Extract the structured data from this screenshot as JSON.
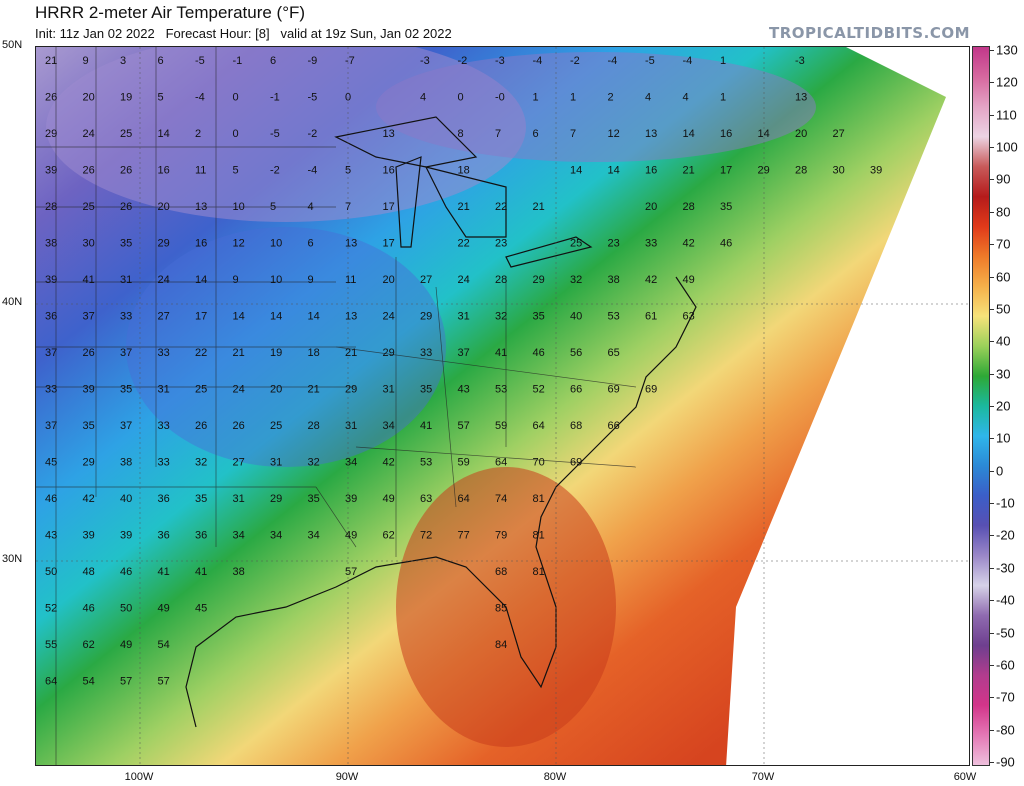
{
  "header": {
    "title": "HRRR 2-meter Air Temperature (°F)",
    "subtitle": "Init: 11z Jan 02 2022   Forecast Hour: [8]   valid at 19z Sun, Jan 02 2022",
    "brand": "TROPICALTIDBITS.COM"
  },
  "axes": {
    "lat_labels": [
      "50N",
      "40N",
      "30N"
    ],
    "lon_labels": [
      "100W",
      "90W",
      "80W",
      "70W",
      "60W"
    ]
  },
  "colorbar": {
    "ticks": [
      "130",
      "120",
      "110",
      "100",
      "90",
      "80",
      "70",
      "60",
      "50",
      "40",
      "30",
      "20",
      "10",
      "0",
      "-10",
      "-20",
      "-30",
      "-40",
      "-50",
      "-60",
      "-70",
      "-80",
      "-90"
    ],
    "stops": [
      "#c2378a",
      "#d6689f",
      "#e3a4c5",
      "#ecd3e3",
      "#c85a5a",
      "#b51b1b",
      "#e03a1a",
      "#ef7a29",
      "#f5b04a",
      "#f6e27a",
      "#9bd05a",
      "#2ea836",
      "#1bb89e",
      "#2fb6ea",
      "#2b89d6",
      "#3b5ec8",
      "#5850b3",
      "#9a87c8",
      "#d6d2e8",
      "#8f6bb0",
      "#6e3f8f",
      "#b13c8e",
      "#d2358a",
      "#e478b5",
      "#eec0dc"
    ]
  },
  "map_values": [
    [
      "21",
      "9",
      "3",
      "6",
      "-5",
      "-1",
      "6",
      "-9",
      "-7",
      "",
      "-3",
      "-2",
      "-3",
      "-4",
      "-2",
      "-4",
      "-5",
      "-4",
      "1",
      "",
      "-3",
      ""
    ],
    [
      "26",
      "20",
      "19",
      "5",
      "-4",
      "0",
      "-1",
      "-5",
      "0",
      "",
      "4",
      "0",
      "-0",
      "1",
      "1",
      "2",
      "4",
      "4",
      "1",
      "",
      "13",
      ""
    ],
    [
      "29",
      "24",
      "25",
      "14",
      "2",
      "0",
      "-5",
      "-2",
      "",
      "13",
      "",
      "8",
      "7",
      "6",
      "7",
      "12",
      "13",
      "14",
      "16",
      "14",
      "20",
      "27"
    ],
    [
      "39",
      "26",
      "26",
      "16",
      "11",
      "5",
      "-2",
      "-4",
      "5",
      "16",
      "",
      "18",
      "",
      "",
      "14",
      "14",
      "16",
      "21",
      "17",
      "29",
      "28",
      "30",
      "39"
    ],
    [
      "28",
      "25",
      "26",
      "20",
      "13",
      "10",
      "5",
      "4",
      "7",
      "17",
      "",
      "21",
      "22",
      "21",
      "",
      "",
      "20",
      "28",
      "35"
    ],
    [
      "38",
      "30",
      "35",
      "29",
      "16",
      "12",
      "10",
      "6",
      "13",
      "17",
      "",
      "22",
      "23",
      "",
      "25",
      "23",
      "33",
      "42",
      "46"
    ],
    [
      "39",
      "41",
      "31",
      "24",
      "14",
      "9",
      "10",
      "9",
      "11",
      "20",
      "27",
      "24",
      "28",
      "29",
      "32",
      "38",
      "42",
      "49"
    ],
    [
      "36",
      "37",
      "33",
      "27",
      "17",
      "14",
      "14",
      "14",
      "13",
      "24",
      "29",
      "31",
      "32",
      "35",
      "40",
      "53",
      "61",
      "63"
    ],
    [
      "37",
      "26",
      "37",
      "33",
      "22",
      "21",
      "19",
      "18",
      "21",
      "29",
      "33",
      "37",
      "41",
      "46",
      "56",
      "65"
    ],
    [
      "33",
      "39",
      "35",
      "31",
      "25",
      "24",
      "20",
      "21",
      "29",
      "31",
      "35",
      "43",
      "53",
      "52",
      "66",
      "69",
      "69"
    ],
    [
      "37",
      "35",
      "37",
      "33",
      "26",
      "26",
      "25",
      "28",
      "31",
      "34",
      "41",
      "57",
      "59",
      "64",
      "68",
      "66"
    ],
    [
      "45",
      "29",
      "38",
      "33",
      "32",
      "27",
      "31",
      "32",
      "34",
      "42",
      "53",
      "59",
      "64",
      "70",
      "69"
    ],
    [
      "46",
      "42",
      "40",
      "36",
      "35",
      "31",
      "29",
      "35",
      "39",
      "49",
      "63",
      "64",
      "74",
      "81"
    ],
    [
      "43",
      "39",
      "39",
      "36",
      "36",
      "34",
      "34",
      "34",
      "49",
      "62",
      "72",
      "77",
      "79",
      "81"
    ],
    [
      "50",
      "48",
      "46",
      "41",
      "41",
      "38",
      "",
      "",
      "57",
      "",
      "",
      "",
      "68",
      "81"
    ],
    [
      "52",
      "46",
      "50",
      "49",
      "45",
      "",
      "",
      "",
      "",
      "",
      "",
      "",
      "85"
    ],
    [
      "55",
      "62",
      "49",
      "54",
      "",
      "",
      "",
      "",
      "",
      "",
      "",
      "",
      "84"
    ],
    [
      "64",
      "54",
      "57",
      "57"
    ]
  ]
}
